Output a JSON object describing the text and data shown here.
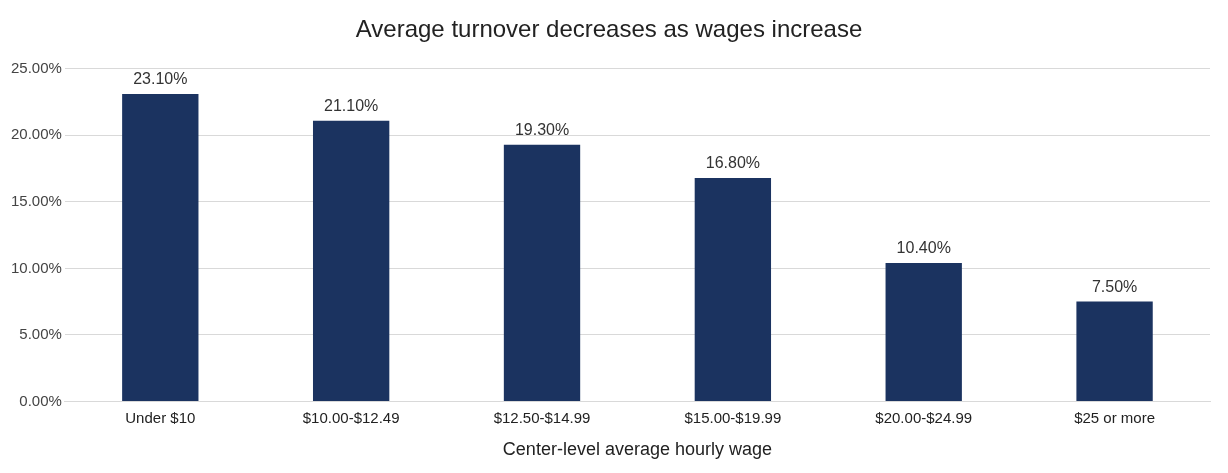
{
  "chart_data": {
    "type": "bar",
    "title": "Average turnover decreases as wages increase",
    "xlabel": "Center-level average hourly wage",
    "categories": [
      "Under $10",
      "$10.00-$12.49",
      "$12.50-$14.99",
      "$15.00-$19.99",
      "$20.00-$24.99",
      "$25 or more"
    ],
    "values": [
      23.1,
      21.1,
      19.3,
      16.8,
      10.4,
      7.5
    ],
    "value_labels": [
      "23.10%",
      "21.10%",
      "19.30%",
      "16.80%",
      "10.40%",
      "7.50%"
    ],
    "color": "#1b3360",
    "ylim": [
      0,
      25
    ],
    "yticks": [
      {
        "value": 0,
        "label": "0.00%"
      },
      {
        "value": 5,
        "label": "5.00%"
      },
      {
        "value": 10,
        "label": "10.00%"
      },
      {
        "value": 15,
        "label": "15.00%"
      },
      {
        "value": 20,
        "label": "20.00%"
      },
      {
        "value": 25,
        "label": "25.00%"
      }
    ],
    "grid": "y"
  }
}
